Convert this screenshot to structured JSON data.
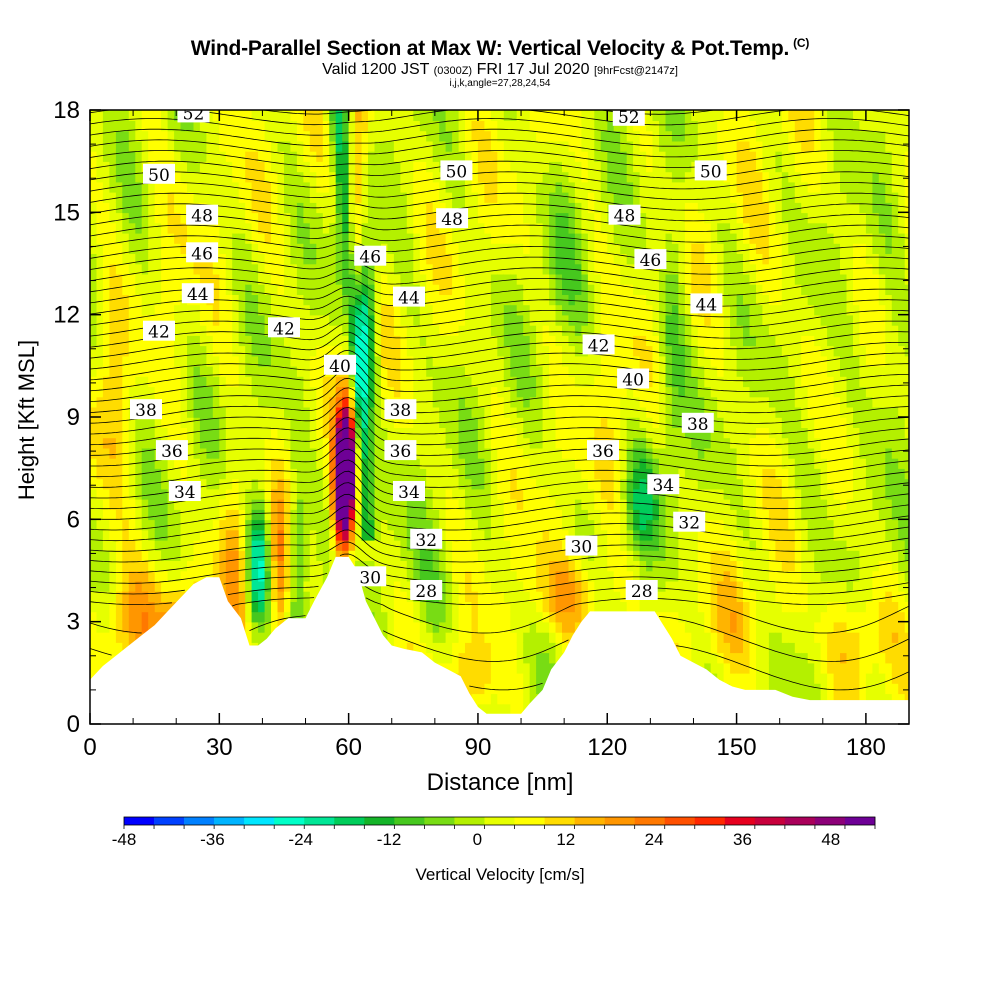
{
  "header": {
    "title": "Wind-Parallel Section at Max W: Vertical Velocity & Pot.Temp.",
    "copyright_mark": "(C)",
    "valid_prefix": "Valid 1200 JST",
    "valid_utc": "(0300Z)",
    "valid_date": "FRI 17 Jul 2020",
    "forecast_info": "[9hrFcst@2147z]",
    "grid_info": "i,j,k,angle=27,28,24,54"
  },
  "chart_data": {
    "type": "heatmap",
    "xlabel": "Distance [nm]",
    "ylabel": "Height [Kft MSL]",
    "xlim": [
      0,
      190
    ],
    "ylim": [
      0,
      18
    ],
    "x_ticks": [
      0,
      30,
      60,
      90,
      120,
      150,
      180
    ],
    "y_ticks": [
      0,
      3,
      6,
      9,
      12,
      15,
      18
    ],
    "colorbar": {
      "label": "Vertical Velocity [cm/s]",
      "min": -48,
      "max": 54,
      "step": 4,
      "tick_labels": [
        "-48",
        "-36",
        "-24",
        "-12",
        "0",
        "12",
        "24",
        "36",
        "48"
      ],
      "colors": [
        "#0000ff",
        "#0040ff",
        "#0080ff",
        "#00b4ff",
        "#00e6ff",
        "#00ffc8",
        "#00e696",
        "#00cd5a",
        "#14b428",
        "#46c81e",
        "#78dc14",
        "#b4f000",
        "#e6ff00",
        "#ffff00",
        "#ffdc00",
        "#ffb400",
        "#ff9600",
        "#ff7800",
        "#ff5000",
        "#ff2800",
        "#e6001e",
        "#c8003c",
        "#aa005a",
        "#8c0078",
        "#6e0096"
      ]
    },
    "terrain": [
      [
        0,
        1.3
      ],
      [
        3,
        1.7
      ],
      [
        6,
        2.0
      ],
      [
        9,
        2.3
      ],
      [
        12,
        2.6
      ],
      [
        15,
        2.9
      ],
      [
        18,
        3.3
      ],
      [
        21,
        3.7
      ],
      [
        24,
        4.1
      ],
      [
        27,
        4.3
      ],
      [
        30,
        4.3
      ],
      [
        32,
        3.6
      ],
      [
        35,
        3.1
      ],
      [
        37,
        2.3
      ],
      [
        39,
        2.3
      ],
      [
        41,
        2.5
      ],
      [
        43,
        2.8
      ],
      [
        46,
        3.1
      ],
      [
        50,
        3.1
      ],
      [
        52,
        3.6
      ],
      [
        55,
        4.3
      ],
      [
        57,
        4.9
      ],
      [
        60,
        4.9
      ],
      [
        62,
        4.5
      ],
      [
        64,
        3.6
      ],
      [
        66,
        3.1
      ],
      [
        68,
        2.6
      ],
      [
        70,
        2.3
      ],
      [
        73,
        2.2
      ],
      [
        77,
        2.1
      ],
      [
        80,
        1.8
      ],
      [
        83,
        1.6
      ],
      [
        86,
        1.4
      ],
      [
        88,
        0.9
      ],
      [
        90,
        0.5
      ],
      [
        92,
        0.3
      ],
      [
        94,
        0.3
      ],
      [
        97,
        0.3
      ],
      [
        100,
        0.3
      ],
      [
        102,
        0.6
      ],
      [
        105,
        1.0
      ],
      [
        107,
        1.6
      ],
      [
        110,
        2.1
      ],
      [
        112,
        2.6
      ],
      [
        114,
        3.0
      ],
      [
        116,
        3.3
      ],
      [
        120,
        3.3
      ],
      [
        124,
        3.3
      ],
      [
        128,
        3.3
      ],
      [
        131,
        3.3
      ],
      [
        133,
        2.9
      ],
      [
        135,
        2.5
      ],
      [
        137,
        2.0
      ],
      [
        140,
        1.8
      ],
      [
        143,
        1.6
      ],
      [
        146,
        1.3
      ],
      [
        149,
        1.1
      ],
      [
        152,
        1.0
      ],
      [
        155,
        1.0
      ],
      [
        159,
        1.0
      ],
      [
        163,
        0.8
      ],
      [
        167,
        0.7
      ],
      [
        171,
        0.7
      ],
      [
        175,
        0.7
      ],
      [
        180,
        0.7
      ],
      [
        185,
        0.7
      ],
      [
        190,
        0.7
      ]
    ],
    "velocity_features": [
      {
        "x": 10,
        "y": 3.0,
        "sx": 8,
        "sy": 1.8,
        "v": 16
      },
      {
        "x": 24,
        "y": 2.8,
        "sx": 8,
        "sy": 1.5,
        "v": 12
      },
      {
        "x": 5,
        "y": 9.5,
        "sx": 4,
        "sy": 3.5,
        "v": 7
      },
      {
        "x": 18,
        "y": 14.0,
        "sx": 6,
        "sy": 4,
        "v": 3
      },
      {
        "x": 14,
        "y": 11.0,
        "sx": 4,
        "sy": 3,
        "v": -3
      },
      {
        "x": 39,
        "y": 4.5,
        "sx": 2.5,
        "sy": 1.8,
        "v": -28
      },
      {
        "x": 44,
        "y": 4.3,
        "sx": 2.5,
        "sy": 2.5,
        "v": 18
      },
      {
        "x": 48,
        "y": 5.0,
        "sx": 2.5,
        "sy": 2.5,
        "v": -16
      },
      {
        "x": 33,
        "y": 5.0,
        "sx": 3,
        "sy": 2.5,
        "v": 10
      },
      {
        "x": 59,
        "y": 7.3,
        "sx": 2.2,
        "sy": 1.8,
        "v": 42
      },
      {
        "x": 64,
        "y": 11.5,
        "sx": 2.5,
        "sy": 2.5,
        "v": -26
      },
      {
        "x": 88,
        "y": 1.2,
        "sx": 7,
        "sy": 1.2,
        "v": 10
      },
      {
        "x": 80,
        "y": 4.0,
        "sx": 6,
        "sy": 2,
        "v": -6
      },
      {
        "x": 112,
        "y": 3.8,
        "sx": 9,
        "sy": 1.3,
        "v": 14
      },
      {
        "x": 128,
        "y": 6.5,
        "sx": 4,
        "sy": 1.5,
        "v": -14
      },
      {
        "x": 135,
        "y": 11.0,
        "sx": 3,
        "sy": 4,
        "v": -10
      },
      {
        "x": 150,
        "y": 3.0,
        "sx": 10,
        "sy": 1.5,
        "v": 6
      },
      {
        "x": 178,
        "y": 2.5,
        "sx": 8,
        "sy": 1.5,
        "v": 12
      },
      {
        "x": 185,
        "y": 10.0,
        "sx": 5,
        "sy": 3,
        "v": -6
      },
      {
        "x": 160,
        "y": 14.0,
        "sx": 5,
        "sy": 3,
        "v": 3
      },
      {
        "x": 110,
        "y": 14.0,
        "sx": 5,
        "sy": 3,
        "v": -5
      },
      {
        "x": 122,
        "y": 9.0,
        "sx": 4,
        "sy": 3,
        "v": 4
      },
      {
        "x": 170,
        "y": 8.0,
        "sx": 4,
        "sy": 2,
        "v": -4
      }
    ],
    "updraft_plume": {
      "x_bottom": 58.5,
      "x_top": 62.5,
      "y_bottom": 5.0,
      "y_top": 18.0,
      "width": 2.2,
      "peak": 42,
      "top_value": 14
    },
    "downdraft_plume": {
      "x_bottom": 64.5,
      "x_top": 57.5,
      "y_bottom": 5.5,
      "y_top": 18.0,
      "width": 2.0,
      "peak": -18
    },
    "theta_contours": {
      "min": 26,
      "max": 53,
      "label_step": 2
    },
    "theta_labels": [
      {
        "x": 24,
        "y": 17.9,
        "text": "52"
      },
      {
        "x": 125,
        "y": 17.8,
        "text": "52"
      },
      {
        "x": 16,
        "y": 16.1,
        "text": "50"
      },
      {
        "x": 85,
        "y": 16.2,
        "text": "50"
      },
      {
        "x": 144,
        "y": 16.2,
        "text": "50"
      },
      {
        "x": 26,
        "y": 14.9,
        "text": "48"
      },
      {
        "x": 84,
        "y": 14.8,
        "text": "48"
      },
      {
        "x": 124,
        "y": 14.9,
        "text": "48"
      },
      {
        "x": 26,
        "y": 13.8,
        "text": "46"
      },
      {
        "x": 65,
        "y": 13.7,
        "text": "46"
      },
      {
        "x": 130,
        "y": 13.6,
        "text": "46"
      },
      {
        "x": 25,
        "y": 12.6,
        "text": "44"
      },
      {
        "x": 74,
        "y": 12.5,
        "text": "44"
      },
      {
        "x": 143,
        "y": 12.3,
        "text": "44"
      },
      {
        "x": 16,
        "y": 11.5,
        "text": "42"
      },
      {
        "x": 45,
        "y": 11.6,
        "text": "42"
      },
      {
        "x": 118,
        "y": 11.1,
        "text": "42"
      },
      {
        "x": 58,
        "y": 10.5,
        "text": "40"
      },
      {
        "x": 126,
        "y": 10.1,
        "text": "40"
      },
      {
        "x": 13,
        "y": 9.2,
        "text": "38"
      },
      {
        "x": 72,
        "y": 9.2,
        "text": "38"
      },
      {
        "x": 141,
        "y": 8.8,
        "text": "38"
      },
      {
        "x": 19,
        "y": 8.0,
        "text": "36"
      },
      {
        "x": 72,
        "y": 8.0,
        "text": "36"
      },
      {
        "x": 119,
        "y": 8.0,
        "text": "36"
      },
      {
        "x": 22,
        "y": 6.8,
        "text": "34"
      },
      {
        "x": 74,
        "y": 6.8,
        "text": "34"
      },
      {
        "x": 133,
        "y": 7.0,
        "text": "34"
      },
      {
        "x": 78,
        "y": 5.4,
        "text": "32"
      },
      {
        "x": 139,
        "y": 5.9,
        "text": "32"
      },
      {
        "x": 65,
        "y": 4.3,
        "text": "30"
      },
      {
        "x": 114,
        "y": 5.2,
        "text": "30"
      },
      {
        "x": 78,
        "y": 3.9,
        "text": "28"
      },
      {
        "x": 128,
        "y": 3.9,
        "text": "28"
      }
    ]
  }
}
